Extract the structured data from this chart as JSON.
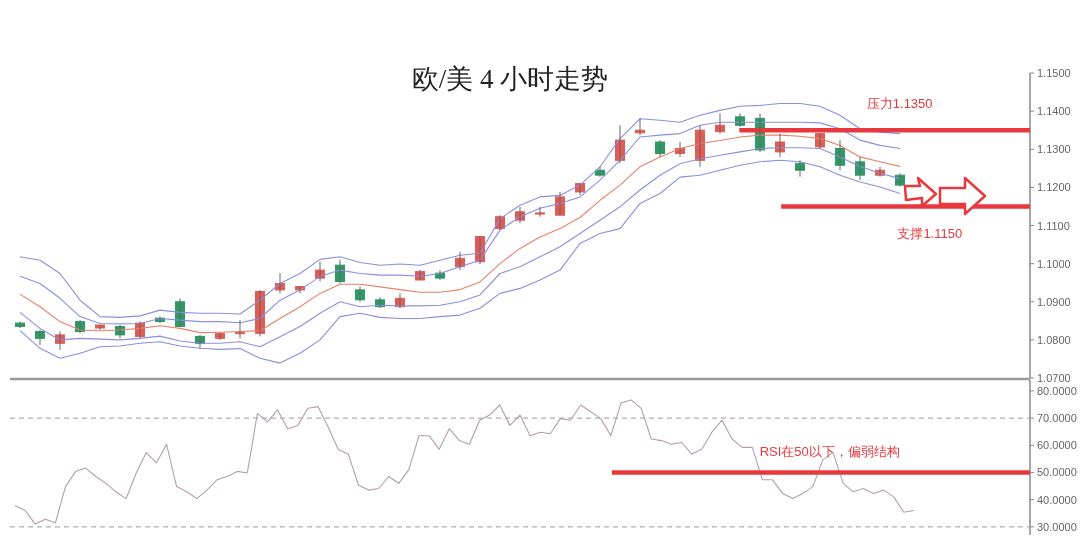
{
  "chart_data": [
    {
      "type": "candlestick",
      "title": "欧/美 4 小时走势",
      "categories": [
        null,
        null,
        null,
        null,
        null,
        null,
        null,
        null,
        null,
        null,
        null,
        null,
        null,
        null,
        null,
        null,
        null,
        null,
        null,
        null,
        null,
        null,
        null,
        null,
        null,
        null,
        null,
        null,
        null,
        null,
        null,
        null,
        null,
        null,
        null,
        null,
        null,
        null,
        null,
        null,
        null,
        null,
        null,
        null,
        null,
        null,
        null,
        null,
        null,
        null,
        null
      ],
      "ohlc": [
        [
          1.0844,
          1.0848,
          1.0831,
          1.0835
        ],
        [
          1.0822,
          1.0826,
          1.0787,
          1.0804
        ],
        [
          1.0791,
          1.0822,
          1.0774,
          1.0813
        ],
        [
          1.0848,
          1.0852,
          1.0817,
          1.0822
        ],
        [
          1.0831,
          1.0839,
          1.0826,
          1.0839
        ],
        [
          1.0835,
          1.0839,
          1.0804,
          1.0813
        ],
        [
          1.0809,
          1.0848,
          1.0804,
          1.0844
        ],
        [
          1.0857,
          1.0861,
          1.0844,
          1.0848
        ],
        [
          1.09,
          1.0909,
          1.0835,
          1.0835
        ],
        [
          1.0809,
          1.0813,
          1.0778,
          1.0791
        ],
        [
          1.0804,
          1.0819,
          1.08,
          1.0817
        ],
        [
          1.0817,
          1.0852,
          1.0804,
          1.0819
        ],
        [
          1.0817,
          1.0931,
          1.0809,
          1.0927
        ],
        [
          1.0931,
          1.0975,
          1.0922,
          1.0948
        ],
        [
          1.0931,
          1.094,
          1.0922,
          1.094
        ],
        [
          1.0962,
          1.1005,
          1.0953,
          1.0983
        ],
        [
          1.0996,
          1.101,
          1.0948,
          1.0953
        ],
        [
          1.0931,
          1.094,
          1.09,
          1.0905
        ],
        [
          1.0905,
          1.0912,
          1.0883,
          1.0887
        ],
        [
          1.0887,
          1.0922,
          1.0883,
          1.0909
        ],
        [
          1.0957,
          1.0983,
          1.0957,
          1.0979
        ],
        [
          1.0975,
          1.0983,
          1.0957,
          1.0962
        ],
        [
          1.0992,
          1.1031,
          1.0983,
          1.1014
        ],
        [
          1.1005,
          1.1071,
          1.0999,
          1.1071
        ],
        [
          1.1092,
          1.1127,
          1.1088,
          1.1123
        ],
        [
          1.1114,
          1.1149,
          1.1106,
          1.1136
        ],
        [
          1.113,
          1.1149,
          1.1123,
          1.1133
        ],
        [
          1.1127,
          1.1188,
          1.1127,
          1.1175
        ],
        [
          1.1188,
          1.121,
          1.118,
          1.121
        ],
        [
          1.1245,
          1.1254,
          1.1228,
          1.1232
        ],
        [
          1.1271,
          1.1363,
          1.1263,
          1.1324
        ],
        [
          1.1343,
          1.1381,
          1.1337,
          1.135
        ],
        [
          1.1319,
          1.1324,
          1.128,
          1.1289
        ],
        [
          1.1289,
          1.1319,
          1.128,
          1.1302
        ],
        [
          1.1271,
          1.1363,
          1.1254,
          1.135
        ],
        [
          1.1346,
          1.1394,
          1.1341,
          1.1363
        ],
        [
          1.1385,
          1.1394,
          1.1359,
          1.1363
        ],
        [
          1.1381,
          1.1394,
          1.1293,
          1.1298
        ],
        [
          1.1293,
          1.1341,
          1.128,
          1.1319
        ],
        [
          1.1263,
          1.1271,
          1.1228,
          1.1245
        ],
        [
          1.1306,
          1.1341,
          1.1302,
          1.1341
        ],
        [
          1.1302,
          1.1324,
          1.1245,
          1.1258
        ],
        [
          1.1267,
          1.128,
          1.1219,
          1.1232
        ],
        [
          1.1232,
          1.1254,
          1.1228,
          1.1245
        ],
        [
          1.1232,
          1.1237,
          1.1202,
          1.1206
        ],
        null,
        null,
        null,
        null,
        null,
        null
      ],
      "colors": [
        "#2e9a66",
        "#2e9a66",
        "#e05c55",
        "#2e9a66",
        "#e05c55",
        "#2e9a66",
        "#e05c55",
        "#2e9a66",
        "#2e9a66",
        "#2e9a66",
        "#e05c55",
        "#e05c55",
        "#e05c55",
        "#e05c55",
        "#e05c55",
        "#e05c55",
        "#2e9a66",
        "#2e9a66",
        "#2e9a66",
        "#e05c55",
        "#e05c55",
        "#2e9a66",
        "#e05c55",
        "#e05c55",
        "#e05c55",
        "#e05c55",
        "#e05c55",
        "#e05c55",
        "#e05c55",
        "#2e9a66",
        "#e05c55",
        "#e05c55",
        "#2e9a66",
        "#e05c55",
        "#e05c55",
        "#e05c55",
        "#2e9a66",
        "#2e9a66",
        "#e05c55",
        "#2e9a66",
        "#e05c55",
        "#2e9a66",
        "#2e9a66",
        "#e05c55",
        "#2e9a66",
        null,
        null,
        null,
        null,
        null,
        null
      ],
      "series": [
        {
          "type": "line",
          "color": "#8b8fe0",
          "values": [
            1.1018,
            1.1009,
            1.0974,
            1.0904,
            1.0861,
            1.0859,
            1.0863,
            1.0878,
            1.0872,
            1.087,
            1.087,
            1.0868,
            1.0904,
            1.0948,
            1.0974,
            1.1011,
            1.1018,
            1.1003,
            1.0996,
            1.0999,
            1.0996,
            1.1009,
            1.1022,
            1.1027,
            1.1118,
            1.1153,
            1.1175,
            1.1179,
            1.1206,
            1.1254,
            1.1328,
            1.138,
            1.1376,
            1.1371,
            1.1389,
            1.1402,
            1.1413,
            1.1415,
            1.142,
            1.142,
            1.1413,
            1.1389,
            1.1354,
            1.1345,
            1.1341,
            null,
            null,
            null,
            null,
            null,
            null
          ]
        },
        {
          "type": "line",
          "color": "#8b8fe0",
          "values": [
            1.0967,
            1.0948,
            1.0909,
            1.0861,
            1.0843,
            1.0842,
            1.0843,
            1.0856,
            1.0852,
            1.0848,
            1.0848,
            1.0845,
            1.0856,
            1.0904,
            1.0931,
            1.0966,
            1.0983,
            1.0974,
            1.097,
            1.097,
            1.0967,
            1.0974,
            1.0992,
            1.1009,
            1.1088,
            1.1123,
            1.1145,
            1.1158,
            1.1175,
            1.1219,
            1.1271,
            1.1332,
            1.1337,
            1.1341,
            1.1363,
            1.1371,
            1.1371,
            1.1371,
            1.1371,
            1.1371,
            1.1369,
            1.1354,
            1.1324,
            1.131,
            1.1302,
            null,
            null,
            null,
            null,
            null,
            null
          ]
        },
        {
          "type": "line",
          "color": "#e8806a",
          "values": [
            1.092,
            1.0887,
            1.0848,
            1.0826,
            1.0824,
            1.0826,
            1.083,
            1.0837,
            1.083,
            1.0819,
            1.082,
            1.0822,
            1.0824,
            1.0856,
            1.0887,
            1.0922,
            1.0946,
            1.0946,
            1.0939,
            1.0932,
            1.0925,
            1.0925,
            1.0932,
            1.0952,
            1.1,
            1.104,
            1.107,
            1.1092,
            1.1121,
            1.1166,
            1.1206,
            1.1254,
            1.128,
            1.1302,
            1.1315,
            1.1323,
            1.1332,
            1.1337,
            1.1337,
            1.1334,
            1.1328,
            1.131,
            1.128,
            1.1267,
            1.1255,
            null,
            null,
            null,
            null,
            null,
            null
          ]
        },
        {
          "type": "line",
          "color": "#8b8fe0",
          "values": [
            1.0872,
            1.083,
            1.08,
            1.0804,
            1.0802,
            1.08,
            1.0804,
            1.081,
            1.0797,
            1.0791,
            1.0791,
            1.0795,
            1.0782,
            1.0808,
            1.0835,
            1.087,
            1.09,
            1.0887,
            1.0891,
            1.0889,
            1.0889,
            1.0891,
            1.09,
            1.0918,
            1.0974,
            1.0992,
            1.1018,
            1.1044,
            1.1079,
            1.1114,
            1.1149,
            1.1193,
            1.1232,
            1.1262,
            1.1275,
            1.1284,
            1.1293,
            1.1302,
            1.1304,
            1.1304,
            1.1302,
            1.128,
            1.1255,
            1.1237,
            1.1223,
            null,
            null,
            null,
            null,
            null,
            null
          ]
        },
        {
          "type": "line",
          "color": "#8b8fe0",
          "values": [
            1.0824,
            1.0778,
            1.0752,
            1.0765,
            1.0782,
            1.0784,
            1.0791,
            1.0795,
            1.0784,
            1.0778,
            1.0775,
            1.0777,
            1.0752,
            1.0739,
            1.0765,
            1.08,
            1.0861,
            1.087,
            1.0859,
            1.0856,
            1.0856,
            1.0861,
            1.0865,
            1.0883,
            1.0922,
            1.0935,
            1.0957,
            1.0983,
            1.1053,
            1.1079,
            1.1092,
            1.1158,
            1.1184,
            1.1227,
            1.1232,
            1.1245,
            1.1258,
            1.1267,
            1.1271,
            1.1267,
            1.1254,
            1.1232,
            1.1214,
            1.1201,
            1.1184,
            null,
            null,
            null,
            null,
            null,
            null
          ]
        }
      ],
      "ylim": [
        1.07,
        1.15
      ],
      "yticks": [
        {
          "value": 1.07,
          "label": "1.0700"
        },
        {
          "value": 1.08,
          "label": "1.0800"
        },
        {
          "value": 1.09,
          "label": "1.0900"
        },
        {
          "value": 1.1,
          "label": "1.1000"
        },
        {
          "value": 1.11,
          "label": "1.1100"
        },
        {
          "value": 1.12,
          "label": "1.1200"
        },
        {
          "value": 1.13,
          "label": "1.1300"
        },
        {
          "value": 1.14,
          "label": "1.1400"
        },
        {
          "value": 1.15,
          "label": "1.1500"
        }
      ],
      "tick_labels": "y",
      "ref_lines": [
        {
          "axis": "y",
          "value": 1.135,
          "label": "压力1.1350",
          "color": "#e8383d",
          "line_style": "solid"
        },
        {
          "axis": "y",
          "value": 1.115,
          "label": "支撑1.1150",
          "color": "#e8383d",
          "line_style": "solid"
        }
      ]
    },
    {
      "type": "line",
      "categories": [
        null,
        null,
        null,
        null,
        null,
        null,
        null,
        null,
        null,
        null,
        null,
        null,
        null,
        null,
        null,
        null,
        null,
        null,
        null,
        null,
        null,
        null,
        null,
        null,
        null,
        null,
        null,
        null,
        null,
        null,
        null,
        null,
        null,
        null,
        null,
        null,
        null,
        null,
        null,
        null,
        null,
        null,
        null,
        null,
        null,
        null,
        null,
        null,
        null,
        null,
        null,
        null,
        null,
        null,
        null,
        null,
        null,
        null,
        null,
        null,
        null,
        null,
        null,
        null,
        null,
        null,
        null,
        null,
        null,
        null,
        null,
        null,
        null,
        null,
        null,
        null,
        null,
        null,
        null,
        null,
        null,
        null,
        null,
        null,
        null,
        null,
        null,
        null,
        null,
        null,
        null,
        null,
        null,
        null,
        null,
        null,
        null,
        null,
        null,
        null,
        null
      ],
      "series": [
        {
          "color": "#b49cb0",
          "values": [
            37.9,
            36,
            31,
            32.8,
            31.5,
            44.8,
            50.4,
            51.6,
            48.5,
            46,
            42.9,
            40.4,
            49.8,
            57.3,
            53.5,
            60.4,
            44.8,
            42.9,
            40.4,
            43.5,
            47.3,
            48.5,
            50.4,
            49.8,
            71.7,
            68.6,
            73,
            66.1,
            67.3,
            73.6,
            74.2,
            66.7,
            58.5,
            56.7,
            45.4,
            43.5,
            44.1,
            48.5,
            46,
            51,
            63.5,
            63.5,
            58.5,
            66.1,
            61.7,
            60.4,
            69.2,
            71.1,
            74.8,
            67.3,
            71.1,
            63.5,
            64.8,
            64.2,
            69.8,
            69.2,
            74.8,
            72.3,
            69.8,
            63.5,
            75.5,
            76.7,
            73.6,
            62.3,
            61.7,
            60.4,
            61,
            56.7,
            58.5,
            64.8,
            69.2,
            62.3,
            59.2,
            59.2,
            47.3,
            47.3,
            42.3,
            40.4,
            42.3,
            44.8,
            54.8,
            57.3,
            46,
            42.9,
            44.1,
            42.3,
            43.5,
            41,
            35.4,
            36,
            null,
            null,
            null,
            null,
            null,
            null,
            null,
            null,
            null,
            null,
            null
          ]
        }
      ],
      "ylim": [
        27,
        84
      ],
      "yticks": [
        {
          "value": 30,
          "label": "30.0000"
        },
        {
          "value": 40,
          "label": "40.0000"
        },
        {
          "value": 50,
          "label": "50.0000"
        },
        {
          "value": 60,
          "label": "60.0000"
        },
        {
          "value": 70,
          "label": "70.0000"
        },
        {
          "value": 80,
          "label": "80.0000"
        }
      ],
      "tick_labels": "y",
      "ref_lines": [
        {
          "axis": "y",
          "value": 70,
          "color": "#b0b0b0",
          "line_style": "dashed"
        },
        {
          "axis": "y",
          "value": 30,
          "color": "#b0b0b0",
          "line_style": "dashed"
        },
        {
          "axis": "y",
          "value": 50,
          "label": "RSI在50以下，偏弱结构",
          "color": "#e8383d",
          "line_style": "solid"
        }
      ]
    }
  ]
}
